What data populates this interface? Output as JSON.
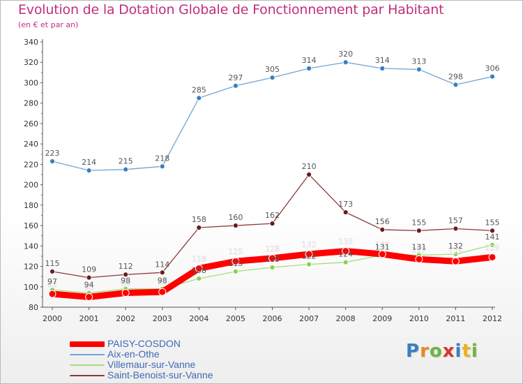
{
  "header": {
    "title": "Evolution de la Dotation Globale de Fonctionnement par Habitant",
    "subtitle": "(en € et par an)"
  },
  "logo": {
    "text": "Proxiti",
    "letters": [
      {
        "ch": "P",
        "color": "#3a7fc1"
      },
      {
        "ch": "r",
        "color": "#e88a1f"
      },
      {
        "ch": "o",
        "color": "#6fb43f"
      },
      {
        "ch": "x",
        "color": "#d8342b"
      },
      {
        "ch": "i",
        "color": "#3a7fc1"
      },
      {
        "ch": "t",
        "color": "#e8b31f"
      },
      {
        "ch": "i",
        "color": "#6fb43f"
      }
    ]
  },
  "chart_data": {
    "type": "line",
    "title": "Evolution de la Dotation Globale de Fonctionnement par Habitant",
    "subtitle": "(en € et par an)",
    "x": [
      "2000",
      "2001",
      "2002",
      "2003",
      "2004",
      "2005",
      "2006",
      "2007",
      "2008",
      "2009",
      "2010",
      "2011",
      "2012"
    ],
    "yticks": [
      80,
      100,
      120,
      140,
      160,
      180,
      200,
      220,
      240,
      260,
      280,
      300,
      320,
      340
    ],
    "ylim": [
      80,
      340
    ],
    "grid": false,
    "legend_position": "bottom-left",
    "series": [
      {
        "name": "PAISY-COSDON",
        "color": "#ff0000",
        "marker": "#ff0000",
        "label_color": "#ffffff",
        "values": [
          93,
          90,
          94,
          95,
          118,
          125,
          128,
          132,
          135,
          132,
          127,
          125,
          129
        ]
      },
      {
        "name": "Aix-en-Othe",
        "color": "#6fa6d6",
        "marker": "#3b7fc0",
        "label_color": "#555555",
        "values": [
          223,
          214,
          215,
          218,
          285,
          297,
          305,
          314,
          320,
          314,
          313,
          298,
          306
        ]
      },
      {
        "name": "Villemaur-sur-Vanne",
        "color": "#a6dc7e",
        "marker": "#8bd04f",
        "label_color": "#555555",
        "values": [
          97,
          94,
          98,
          98,
          108,
          115,
          119,
          122,
          124,
          131,
          131,
          132,
          141
        ]
      },
      {
        "name": "Saint-Benoist-sur-Vanne",
        "color": "#8b3a3a",
        "marker": "#6a1c1c",
        "label_color": "#555555",
        "values": [
          115,
          109,
          112,
          114,
          158,
          160,
          162,
          210,
          173,
          156,
          155,
          157,
          155
        ]
      }
    ]
  }
}
